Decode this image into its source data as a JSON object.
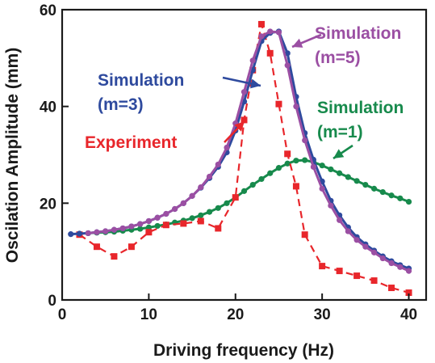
{
  "chart_data": {
    "type": "line",
    "title": "",
    "xlabel": "Driving frequency (Hz)",
    "ylabel": "Oscilation Amplitude (mm)",
    "xlim": [
      0,
      42
    ],
    "ylim": [
      0,
      60
    ],
    "xticks": [
      0,
      10,
      20,
      30,
      40
    ],
    "yticks": [
      0,
      20,
      40,
      60
    ],
    "grid": false,
    "legend": "none",
    "series": [
      {
        "key": "experiment",
        "color": "#e8262b",
        "style": "dashed",
        "marker": "square",
        "x": [
          2,
          4,
          6,
          8,
          10,
          12,
          14,
          16,
          18,
          20,
          21,
          22,
          23,
          24,
          25,
          26,
          27,
          28,
          30,
          32,
          34,
          36,
          38,
          40
        ],
        "y": [
          13.5,
          11,
          9,
          11,
          14,
          15.5,
          15.8,
          16.3,
          14.8,
          21.2,
          37.2,
          47.5,
          57,
          51,
          40.5,
          30.2,
          23.5,
          13.5,
          7,
          6,
          5,
          4,
          2.5,
          1.5
        ]
      },
      {
        "key": "sim_m3",
        "color": "#2e4a9e",
        "style": "solid",
        "marker": "circle",
        "x": [
          1,
          2,
          3,
          4,
          5,
          6,
          7,
          8,
          9,
          10,
          11,
          12,
          13,
          14,
          15,
          16,
          17,
          18,
          19,
          20,
          21,
          22,
          23,
          24,
          25,
          26,
          27,
          28,
          29,
          30,
          31,
          32,
          33,
          34,
          35,
          36,
          37,
          38,
          39,
          40
        ],
        "y": [
          13.6,
          13.7,
          13.8,
          14.0,
          14.2,
          14.5,
          14.8,
          15.2,
          15.7,
          16.3,
          17.0,
          17.8,
          18.8,
          20.0,
          21.5,
          23.2,
          25.2,
          27.5,
          30.5,
          35.0,
          41.0,
          47.5,
          53.5,
          55.2,
          55.5,
          51,
          42,
          34.5,
          29.0,
          24.5,
          20.5,
          17.5,
          15.0,
          13.0,
          11.5,
          10.2,
          9.0,
          8.0,
          7.2,
          6.5
        ]
      },
      {
        "key": "sim_m5",
        "color": "#9b4fa3",
        "style": "solid",
        "marker": "circle",
        "x": [
          3,
          4,
          5,
          6,
          7,
          8,
          9,
          10,
          11,
          12,
          13,
          14,
          15,
          16,
          17,
          18,
          19,
          20,
          21,
          22,
          23,
          24,
          25,
          26,
          27,
          28,
          29,
          30,
          31,
          32,
          33,
          34,
          35,
          36,
          37,
          38,
          39,
          40
        ],
        "y": [
          13.8,
          14.0,
          14.2,
          14.5,
          14.8,
          15.2,
          15.7,
          16.3,
          17.0,
          17.8,
          18.8,
          20.0,
          21.5,
          23.3,
          25.5,
          28.0,
          31.5,
          36.5,
          43.0,
          49.5,
          54.5,
          55.5,
          55.3,
          48.5,
          40.0,
          33.0,
          27.5,
          23.0,
          19.5,
          16.5,
          14.2,
          12.4,
          11.0,
          9.8,
          8.6,
          7.6,
          6.8,
          6.0
        ]
      },
      {
        "key": "sim_m1",
        "color": "#178a4c",
        "style": "solid",
        "marker": "circle",
        "x": [
          3,
          4,
          5,
          6,
          7,
          8,
          9,
          10,
          11,
          12,
          13,
          14,
          15,
          16,
          17,
          18,
          19,
          20,
          21,
          22,
          23,
          24,
          25,
          26,
          27,
          28,
          29,
          30,
          31,
          32,
          33,
          34,
          35,
          36,
          37,
          38,
          39,
          40
        ],
        "y": [
          13.8,
          13.9,
          14.0,
          14.1,
          14.3,
          14.5,
          14.7,
          15.0,
          15.3,
          15.6,
          16.0,
          16.4,
          16.9,
          17.5,
          18.2,
          19.0,
          20.0,
          21.2,
          22.5,
          23.8,
          25.0,
          26.2,
          27.3,
          28.2,
          28.8,
          28.9,
          28.5,
          27.8,
          27.0,
          26.2,
          25.4,
          24.6,
          23.8,
          23.0,
          22.3,
          21.6,
          21.0,
          20.3
        ]
      }
    ],
    "annotations": [
      {
        "key": "sim_m5",
        "line1": "Simulation",
        "line2": "(m=5)",
        "color": "#9b4fa3"
      },
      {
        "key": "sim_m3",
        "line1": "Simulation",
        "line2": "(m=3)",
        "color": "#2e4a9e"
      },
      {
        "key": "sim_m1",
        "line1": "Simulation",
        "line2": "(m=1)",
        "color": "#178a4c"
      },
      {
        "key": "experiment",
        "line1": "Experiment",
        "line2": "",
        "color": "#e8262b"
      }
    ]
  }
}
